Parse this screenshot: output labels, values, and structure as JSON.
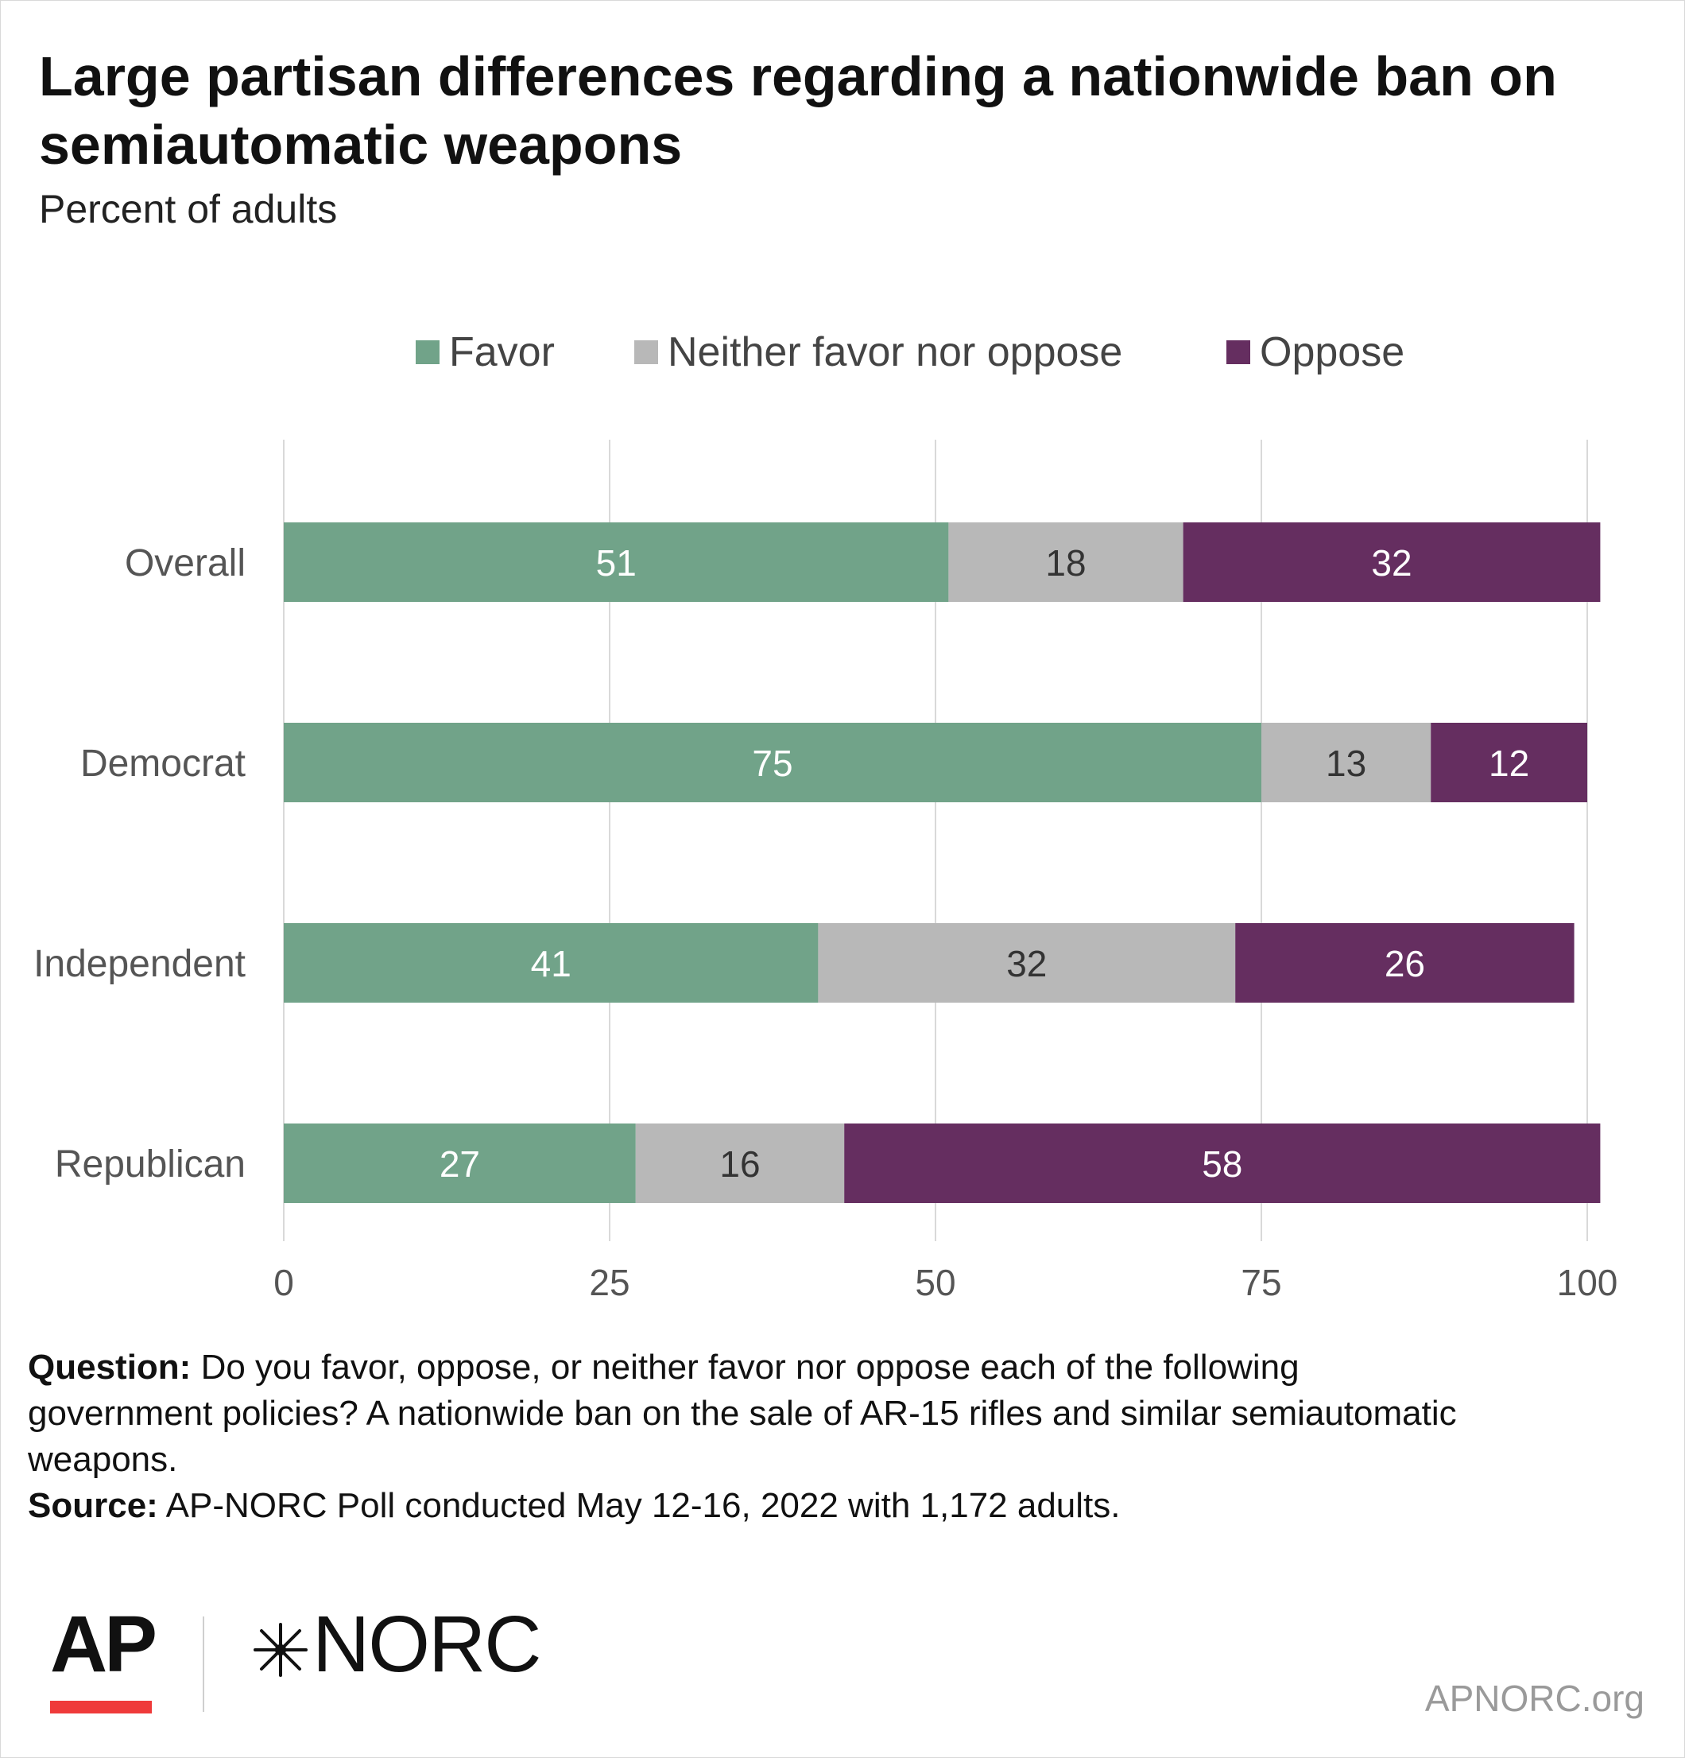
{
  "chart_data": {
    "type": "bar",
    "orientation": "horizontal",
    "stacked": true,
    "title": "Large partisan differences regarding a nationwide ban on semiautomatic weapons",
    "subtitle": "Percent of adults",
    "categories": [
      "Overall",
      "Democrat",
      "Independent",
      "Republican"
    ],
    "series": [
      {
        "name": "Favor",
        "values": [
          51,
          75,
          41,
          27
        ],
        "color": "#71a389",
        "label_color": "#ffffff"
      },
      {
        "name": "Neither favor nor oppose",
        "values": [
          18,
          13,
          32,
          16
        ],
        "color": "#b8b8b8",
        "label_color": "#333333"
      },
      {
        "name": "Oppose",
        "values": [
          32,
          12,
          26,
          58
        ],
        "color": "#652e60",
        "label_color": "#ffffff"
      }
    ],
    "xlim": [
      0,
      100
    ],
    "xticks": [
      0,
      25,
      50,
      75,
      100
    ],
    "grid": true,
    "legend": "top-center",
    "xlabel": "",
    "ylabel": ""
  },
  "footer": {
    "question_label": "Question:",
    "question_text": "Do you favor, oppose, or neither favor nor oppose each of the following government policies? A nationwide ban on the sale of AR-15 rifles and similar semiautomatic weapons.",
    "source_label": "Source:",
    "source_text": "AP-NORC Poll conducted May 12-16, 2022 with 1,172 adults."
  },
  "logos": {
    "ap": "AP",
    "norc": "NORC",
    "site": "APNORC.org"
  }
}
